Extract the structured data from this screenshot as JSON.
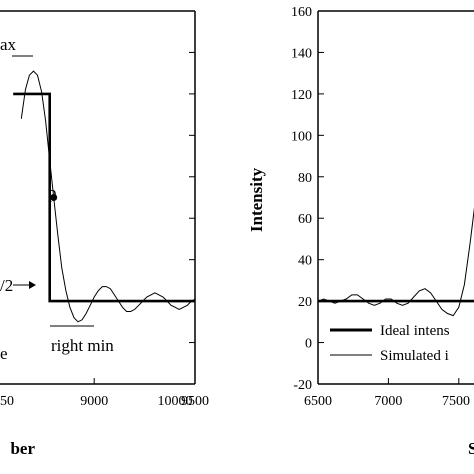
{
  "chart_data": [
    {
      "type": "line",
      "title": "",
      "xlabel": "ber",
      "ylabel": "",
      "x_ticks": [
        "50",
        "9000",
        "9500",
        "10000"
      ],
      "xlim": [
        8600,
        10000
      ],
      "ylim": [
        -20,
        160
      ],
      "grid": false,
      "annotations": {
        "max": "ax",
        "point": "p",
        "half": "/2",
        "min": "right min",
        "lower_left": "e"
      },
      "series": [
        {
          "style": "thick",
          "x": [
            8600,
            8780,
            8780,
            10000
          ],
          "y": [
            120,
            120,
            20,
            20
          ]
        },
        {
          "style": "thin",
          "x": [
            8640,
            8660,
            8680,
            8700,
            8720,
            8740,
            8760,
            8780,
            8800,
            8820,
            8840,
            8860,
            8880,
            8900,
            8920,
            8940,
            8960,
            8980,
            9000,
            9020,
            9040,
            9060,
            9080,
            9100,
            9120,
            9140,
            9160,
            9180,
            9200,
            9220,
            9240,
            9260,
            9280,
            9300,
            9320,
            9340,
            9360,
            9380,
            9400,
            9420,
            9440,
            9460,
            9480,
            9500,
            9520,
            9540,
            9560,
            9580,
            9600,
            9620,
            9640,
            9660,
            9680,
            9700,
            9720,
            9740,
            9760,
            9780,
            9800,
            9820,
            9840,
            9860,
            9880,
            9900,
            9920,
            9940,
            9960,
            9980,
            10000
          ],
          "y": [
            108,
            122,
            129,
            131,
            129,
            121,
            107,
            88,
            70,
            52,
            36,
            25,
            17,
            12,
            10,
            11,
            14,
            18,
            22,
            25,
            27,
            27,
            26,
            23,
            20,
            17,
            15,
            15,
            16,
            18,
            20,
            22,
            23,
            24,
            23,
            22,
            20,
            18,
            17,
            16,
            17,
            18,
            20,
            21,
            22,
            23,
            22,
            21,
            20,
            19,
            18,
            18,
            19,
            20,
            21,
            22,
            22,
            21,
            20,
            19,
            19,
            20,
            21,
            21,
            21,
            20,
            20,
            20,
            20
          ]
        }
      ]
    },
    {
      "type": "line",
      "title": "",
      "xlabel": "S",
      "ylabel": "Intensity",
      "x_ticks": [
        "6500",
        "7000",
        "7500"
      ],
      "y_ticks": [
        "-20",
        "0",
        "20",
        "40",
        "60",
        "80",
        "100",
        "120",
        "140",
        "160"
      ],
      "xlim": [
        6500,
        7700
      ],
      "ylim": [
        -20,
        160
      ],
      "grid": false,
      "legend": [
        "Ideal intens",
        "Simulated i"
      ],
      "legend_position": "bottom-left",
      "series": [
        {
          "style": "thick",
          "x": [
            6500,
            7650,
            7650,
            7700
          ],
          "y": [
            20,
            20,
            120,
            120
          ]
        },
        {
          "style": "thin",
          "x": [
            6500,
            6540,
            6580,
            6620,
            6660,
            6700,
            6740,
            6780,
            6820,
            6860,
            6900,
            6940,
            6980,
            7020,
            7060,
            7100,
            7140,
            7180,
            7220,
            7260,
            7300,
            7340,
            7380,
            7420,
            7460,
            7500,
            7540,
            7580,
            7620,
            7650,
            7680,
            7700
          ],
          "y": [
            20,
            21,
            20,
            19,
            20,
            21,
            23,
            23,
            21,
            19,
            18,
            19,
            21,
            21,
            19,
            18,
            19,
            22,
            25,
            26,
            24,
            20,
            16,
            14,
            13,
            17,
            28,
            48,
            70,
            90,
            108,
            116
          ]
        }
      ]
    }
  ]
}
